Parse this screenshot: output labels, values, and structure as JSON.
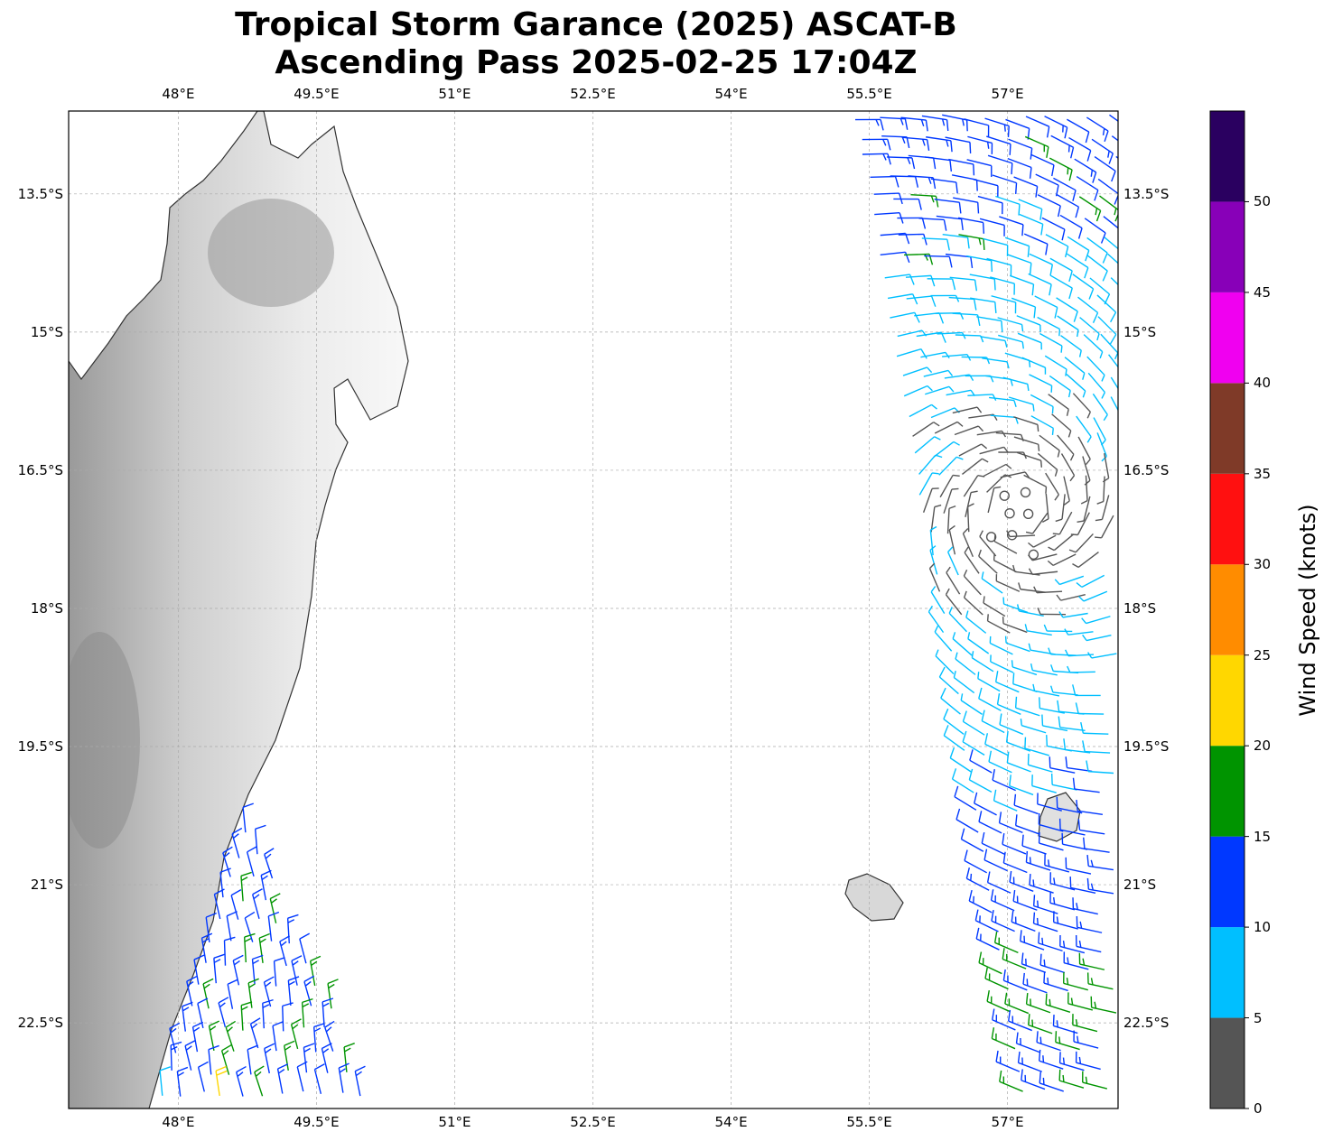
{
  "title": {
    "line1": "Tropical Storm Garance (2025) ASCAT-B",
    "line2": "Ascending Pass 2025-02-25 17:04Z"
  },
  "map": {
    "lon_ticks": [
      "48°E",
      "49.5°E",
      "51°E",
      "52.5°E",
      "54°E",
      "55.5°E",
      "57°E"
    ],
    "lon_values": [
      48,
      49.5,
      51,
      52.5,
      54,
      55.5,
      57
    ],
    "lat_ticks": [
      "13.5°S",
      "15°S",
      "16.5°S",
      "18°S",
      "19.5°S",
      "21°S",
      "22.5°S"
    ],
    "lat_values": [
      13.5,
      15,
      16.5,
      18,
      19.5,
      21,
      22.5
    ],
    "lon_range": [
      46.81,
      58.2
    ],
    "lat_range": [
      -12.6,
      -23.43
    ],
    "storm_center": {
      "lon": 57.15,
      "lat": -16.9
    }
  },
  "colorbar": {
    "label": "Wind Speed (knots)",
    "ticks": [
      "0",
      "5",
      "10",
      "15",
      "20",
      "25",
      "30",
      "35",
      "40",
      "45",
      "50"
    ],
    "bounds": [
      0,
      5,
      10,
      15,
      20,
      25,
      30,
      35,
      40,
      45,
      50,
      55
    ],
    "colors": [
      "#555555",
      "#00bfff",
      "#0038ff",
      "#009400",
      "#ffd700",
      "#ff8c00",
      "#ff1010",
      "#7f3a28",
      "#f000f0",
      "#8800b8",
      "#2a0060"
    ]
  }
}
